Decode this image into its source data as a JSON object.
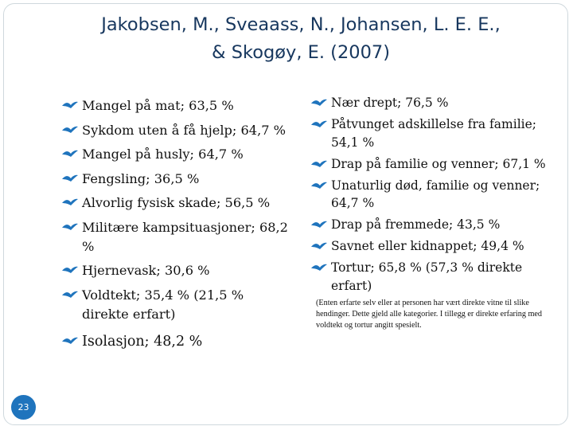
{
  "slide": {
    "title_line1": "Jakobsen, M., Sveaass, N., Johansen, L. E. E.,",
    "title_line2": "& Skogøy, E. (2007)",
    "left_items": [
      "Mangel på mat; 63,5 %",
      "Sykdom uten å få hjelp; 64,7 %",
      "Mangel på husly; 64,7 %",
      "Fengsling; 36,5 %",
      "Alvorlig fysisk skade; 56,5 %",
      "Militære kampsituasjoner; 68,2 %",
      "Hjernevask; 30,6 %",
      "Voldtekt; 35,4 % (21,5 % direkte erfart)",
      "Isolasjon; 48,2 %"
    ],
    "right_items": [
      "Nær drept; 76,5 %",
      "Påtvunget adskillelse fra familie; 54,1 %",
      "Drap på familie og venner; 67,1 %",
      "Unaturlig død, familie og venner; 64,7 %",
      "Drap på fremmede; 43,5 %",
      "Savnet eller kidnappet; 49,4 %",
      "Tortur; 65,8 % (57,3 % direkte erfart)"
    ],
    "note": "(Enten erfarte selv eller at personen har vært direkte vitne til slike hendinger. Dette gjeld alle kategorier. I tillegg er direkte erfaring med voldtekt og tortur angitt spesielt.",
    "page_number": "23",
    "accent_color": "#1f74bd",
    "title_color": "#17375e",
    "bullet_icon": "stylized-bird-bullet-icon"
  }
}
